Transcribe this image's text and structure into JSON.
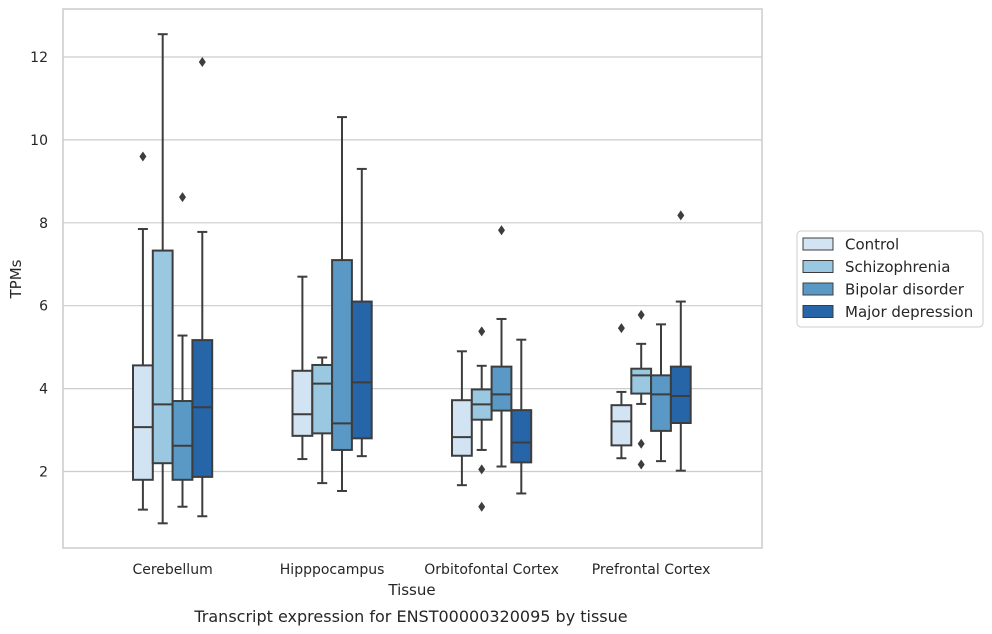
{
  "chart_data": {
    "type": "box",
    "xlabel": "Tissue",
    "ylabel": "TPMs",
    "caption": "Transcript expression for ENST00000320095 by tissue",
    "ylim": [
      0.2,
      13.2
    ],
    "yticks": [
      2,
      4,
      6,
      8,
      10,
      12
    ],
    "grid": "horizontal",
    "legend_position": "right",
    "categories": [
      "Cerebellum",
      "Hipppocampus",
      "Orbitofontal Cortex",
      "Prefrontal Cortex"
    ],
    "series": [
      {
        "name": "Control",
        "color": "#d2e3f3",
        "boxes": [
          {
            "whisker_low": 1.08,
            "q1": 1.8,
            "median": 3.07,
            "q3": 4.56,
            "whisker_high": 7.85,
            "outliers": [
              9.6
            ]
          },
          {
            "whisker_low": 2.3,
            "q1": 2.86,
            "median": 3.38,
            "q3": 4.43,
            "whisker_high": 6.7,
            "outliers": []
          },
          {
            "whisker_low": 1.67,
            "q1": 2.38,
            "median": 2.83,
            "q3": 3.72,
            "whisker_high": 4.9,
            "outliers": []
          },
          {
            "whisker_low": 2.32,
            "q1": 2.63,
            "median": 3.21,
            "q3": 3.6,
            "whisker_high": 3.92,
            "outliers": [
              5.46
            ]
          }
        ]
      },
      {
        "name": "Schizophrenia",
        "color": "#9ac8e0",
        "boxes": [
          {
            "whisker_low": 0.75,
            "q1": 2.2,
            "median": 3.62,
            "q3": 7.33,
            "whisker_high": 12.55,
            "outliers": []
          },
          {
            "whisker_low": 1.72,
            "q1": 2.92,
            "median": 4.12,
            "q3": 4.57,
            "whisker_high": 4.75,
            "outliers": []
          },
          {
            "whisker_low": 2.52,
            "q1": 3.25,
            "median": 3.62,
            "q3": 3.98,
            "whisker_high": 4.55,
            "outliers": [
              5.38,
              2.05,
              1.15
            ]
          },
          {
            "whisker_low": 3.63,
            "q1": 3.88,
            "median": 4.32,
            "q3": 4.48,
            "whisker_high": 5.08,
            "outliers": [
              5.78,
              2.67,
              2.17
            ]
          }
        ]
      },
      {
        "name": "Bipolar disorder",
        "color": "#5a99c6",
        "boxes": [
          {
            "whisker_low": 1.15,
            "q1": 1.8,
            "median": 2.62,
            "q3": 3.7,
            "whisker_high": 5.28,
            "outliers": [
              8.62
            ]
          },
          {
            "whisker_low": 1.53,
            "q1": 2.52,
            "median": 3.16,
            "q3": 7.1,
            "whisker_high": 10.55,
            "outliers": []
          },
          {
            "whisker_low": 2.12,
            "q1": 3.47,
            "median": 3.86,
            "q3": 4.53,
            "whisker_high": 5.68,
            "outliers": [
              7.82
            ]
          },
          {
            "whisker_low": 2.25,
            "q1": 2.98,
            "median": 3.86,
            "q3": 4.32,
            "whisker_high": 5.55,
            "outliers": []
          }
        ]
      },
      {
        "name": "Major depression",
        "color": "#2565a8",
        "boxes": [
          {
            "whisker_low": 0.92,
            "q1": 1.87,
            "median": 3.55,
            "q3": 5.17,
            "whisker_high": 7.78,
            "outliers": [
              11.88
            ]
          },
          {
            "whisker_low": 2.37,
            "q1": 2.8,
            "median": 4.15,
            "q3": 6.1,
            "whisker_high": 9.3,
            "outliers": []
          },
          {
            "whisker_low": 1.47,
            "q1": 2.22,
            "median": 2.7,
            "q3": 3.48,
            "whisker_high": 5.18,
            "outliers": []
          },
          {
            "whisker_low": 2.02,
            "q1": 3.17,
            "median": 3.82,
            "q3": 4.53,
            "whisker_high": 6.1,
            "outliers": [
              8.18
            ]
          }
        ]
      }
    ]
  }
}
